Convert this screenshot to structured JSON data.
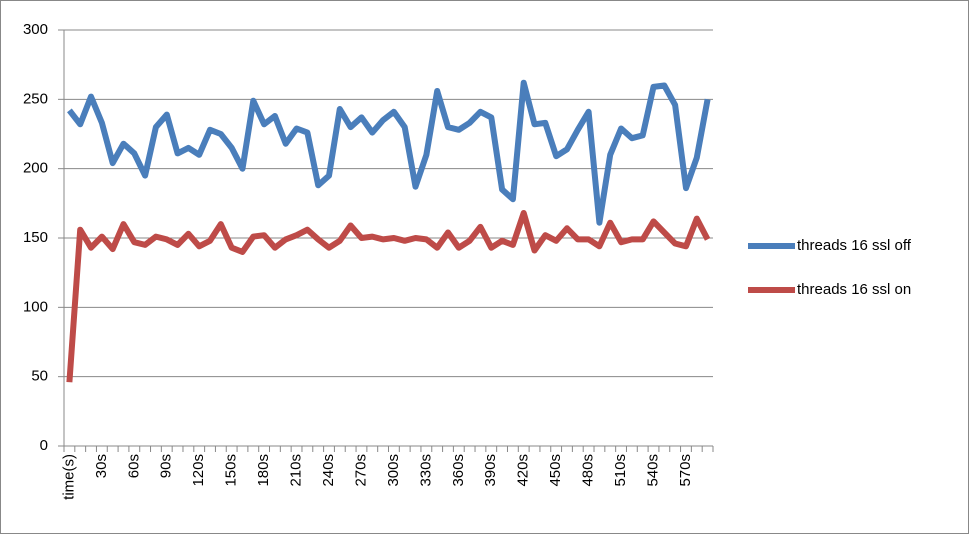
{
  "chart_data": {
    "type": "line",
    "categories": [
      "time(s)",
      null,
      null,
      "30s",
      null,
      null,
      "60s",
      null,
      null,
      "90s",
      null,
      null,
      "120s",
      null,
      null,
      "150s",
      null,
      null,
      "180s",
      null,
      null,
      "210s",
      null,
      null,
      "240s",
      null,
      null,
      "270s",
      null,
      null,
      "300s",
      null,
      null,
      "330s",
      null,
      null,
      "360s",
      null,
      null,
      "390s",
      null,
      null,
      "420s",
      null,
      null,
      "450s",
      null,
      null,
      "480s",
      null,
      null,
      "510s",
      null,
      null,
      "540s",
      null,
      null,
      "570s",
      null,
      null
    ],
    "series": [
      {
        "name": "threads 16 ssl off",
        "color": "#4a7ebb",
        "values": [
          242,
          232,
          252,
          233,
          204,
          218,
          211,
          195,
          230,
          239,
          211,
          215,
          210,
          228,
          225,
          215,
          200,
          249,
          232,
          238,
          218,
          229,
          226,
          188,
          195,
          243,
          230,
          237,
          226,
          235,
          241,
          230,
          187,
          210,
          256,
          230,
          228,
          233,
          241,
          237,
          185,
          178,
          262,
          232,
          233,
          209,
          214,
          228,
          241,
          161,
          210,
          229,
          222,
          224,
          259,
          260,
          246,
          186,
          208,
          250
        ]
      },
      {
        "name": "threads 16 ssl on",
        "color": "#be4b48",
        "values": [
          46,
          156,
          143,
          151,
          142,
          160,
          147,
          145,
          151,
          149,
          145,
          153,
          144,
          148,
          160,
          143,
          140,
          151,
          152,
          143,
          149,
          152,
          156,
          149,
          143,
          148,
          159,
          150,
          151,
          149,
          150,
          148,
          150,
          149,
          143,
          154,
          143,
          148,
          158,
          143,
          148,
          145,
          168,
          141,
          152,
          148,
          157,
          149,
          149,
          144,
          161,
          147,
          149,
          149,
          162,
          154,
          146,
          144,
          164,
          149
        ]
      }
    ],
    "ylim": [
      0,
      300
    ],
    "yticks": [
      0,
      50,
      100,
      150,
      200,
      250,
      300
    ],
    "grid": true,
    "legend": "right"
  }
}
